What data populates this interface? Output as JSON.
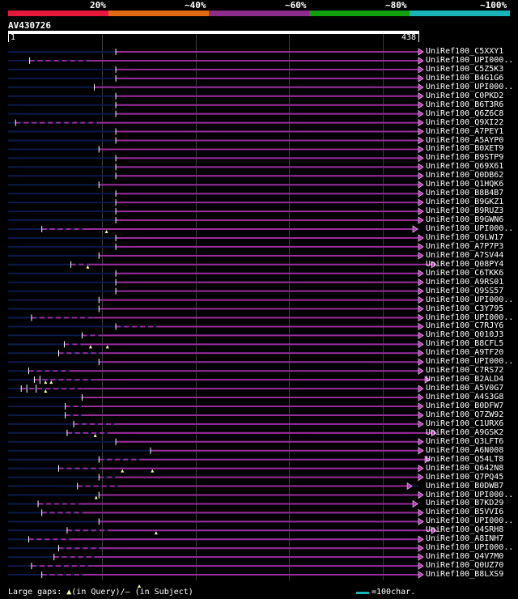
{
  "scale": {
    "labels": [
      "20%",
      "~40%",
      "~60%",
      "~80%",
      "~100%"
    ],
    "colors": [
      "#e8183c",
      "#e06a14",
      "#8c2c8c",
      "#10a010",
      "#18b4b8"
    ]
  },
  "query": {
    "id": "AV430726",
    "start": "1",
    "end": "438",
    "length": 438
  },
  "hits": [
    {
      "label": "UniRef100_C5XXY1",
      "qs": 115,
      "qe": 438,
      "ext": 0,
      "ss": 1,
      "dashes": 0
    },
    {
      "label": "UniRef100_UPI000..",
      "qs": 23,
      "qe": 438,
      "ext": 0,
      "ss": 1,
      "dashes": 3
    },
    {
      "label": "UniRef100_C5Z5K3",
      "qs": 115,
      "qe": 438,
      "ext": 0,
      "ss": 1,
      "dashes": 0
    },
    {
      "label": "UniRef100_B4G1G6",
      "qs": 115,
      "qe": 438,
      "ext": 0,
      "ss": 1,
      "dashes": 0
    },
    {
      "label": "UniRef100_UPI000..",
      "qs": 92,
      "qe": 438,
      "ext": 0,
      "ss": 1,
      "dashes": 0
    },
    {
      "label": "UniRef100_C0PKD2",
      "qs": 115,
      "qe": 438,
      "ext": 0,
      "ss": 1,
      "dashes": 0
    },
    {
      "label": "UniRef100_B6T3R6",
      "qs": 115,
      "qe": 438,
      "ext": 0,
      "ss": 1,
      "dashes": 0
    },
    {
      "label": "UniRef100_Q6Z6C8",
      "qs": 115,
      "qe": 438,
      "ext": 0,
      "ss": 1,
      "dashes": 0
    },
    {
      "label": "UniRef100_Q9XI22",
      "qs": 8,
      "qe": 438,
      "ext": 0,
      "ss": 1,
      "dashes": 4
    },
    {
      "label": "UniRef100_A7PEY1",
      "qs": 115,
      "qe": 438,
      "ext": 0,
      "ss": 1,
      "dashes": 0
    },
    {
      "label": "UniRef100_A5AYP0",
      "qs": 115,
      "qe": 438,
      "ext": 0,
      "ss": 1,
      "dashes": 0
    },
    {
      "label": "UniRef100_B0XET9",
      "qs": 97,
      "qe": 438,
      "ext": 0,
      "ss": 1,
      "dashes": 0
    },
    {
      "label": "UniRef100_B9STP9",
      "qs": 115,
      "qe": 438,
      "ext": 0,
      "ss": 1,
      "dashes": 0
    },
    {
      "label": "UniRef100_Q69X61",
      "qs": 115,
      "qe": 438,
      "ext": 0,
      "ss": 1,
      "dashes": 0
    },
    {
      "label": "UniRef100_Q0DB62",
      "qs": 115,
      "qe": 438,
      "ext": 0,
      "ss": 1,
      "dashes": 0
    },
    {
      "label": "UniRef100_Q1HQK6",
      "qs": 97,
      "qe": 438,
      "ext": 0,
      "ss": 1,
      "dashes": 0
    },
    {
      "label": "UniRef100_B8B4B7",
      "qs": 115,
      "qe": 438,
      "ext": 0,
      "ss": 1,
      "dashes": 0
    },
    {
      "label": "UniRef100_B9GKZ1",
      "qs": 115,
      "qe": 438,
      "ext": 0,
      "ss": 1,
      "dashes": 0
    },
    {
      "label": "UniRef100_B9RUZ3",
      "qs": 115,
      "qe": 438,
      "ext": 0,
      "ss": 1,
      "dashes": 0
    },
    {
      "label": "UniRef100_B9GWN6",
      "qs": 115,
      "qe": 438,
      "ext": 0,
      "ss": 1,
      "dashes": 0
    },
    {
      "label": "UniRef100_UPI000..",
      "qs": 36,
      "qe": 432,
      "ext": 0,
      "ss": 1,
      "dashes": 2
    },
    {
      "label": "UniRef100_Q9LW17",
      "qs": 115,
      "qe": 438,
      "ext": 0,
      "ss": 1,
      "dashes": 0
    },
    {
      "label": "UniRef100_A7P7P3",
      "qs": 115,
      "qe": 438,
      "ext": 0,
      "ss": 1,
      "dashes": 0
    },
    {
      "label": "UniRef100_A7SV44",
      "qs": 97,
      "qe": 438,
      "ext": 0,
      "ss": 1,
      "dashes": 0
    },
    {
      "label": "UniRef100_Q08PY4",
      "qs": 67,
      "qe": 452,
      "ext": 1,
      "ss": 1,
      "dashes": 1
    },
    {
      "label": "UniRef100_C6TKK6",
      "qs": 115,
      "qe": 438,
      "ext": 0,
      "ss": 1,
      "dashes": 0
    },
    {
      "label": "UniRef100_A9RS01",
      "qs": 115,
      "qe": 438,
      "ext": 0,
      "ss": 1,
      "dashes": 0
    },
    {
      "label": "UniRef100_Q9SS57",
      "qs": 115,
      "qe": 438,
      "ext": 0,
      "ss": 1,
      "dashes": 0
    },
    {
      "label": "UniRef100_UPI000..",
      "qs": 97,
      "qe": 438,
      "ext": 0,
      "ss": 1,
      "dashes": 0
    },
    {
      "label": "UniRef100_C3Y795",
      "qs": 97,
      "qe": 438,
      "ext": 0,
      "ss": 1,
      "dashes": 0
    },
    {
      "label": "UniRef100_UPI000..",
      "qs": 25,
      "qe": 438,
      "ext": 0,
      "ss": 1,
      "dashes": 3
    },
    {
      "label": "UniRef100_C7RJY6",
      "qs": 115,
      "qe": 438,
      "ext": 0,
      "ss": 1,
      "dashes": 2
    },
    {
      "label": "UniRef100_Q010J3",
      "qs": 79,
      "qe": 438,
      "ext": 0,
      "ss": 1,
      "dashes": 1
    },
    {
      "label": "UniRef100_B8CFL5",
      "qs": 60,
      "qe": 438,
      "ext": 0,
      "ss": 1,
      "dashes": 1
    },
    {
      "label": "UniRef100_A9TF20",
      "qs": 54,
      "qe": 438,
      "ext": 0,
      "ss": 1,
      "dashes": 2
    },
    {
      "label": "UniRef100_UPI000..",
      "qs": 97,
      "qe": 438,
      "ext": 0,
      "ss": 1,
      "dashes": 0
    },
    {
      "label": "UniRef100_C7RS72",
      "qs": 22,
      "qe": 438,
      "ext": 0,
      "ss": 1,
      "dashes": 2
    },
    {
      "label": "UniRef100_B2ALD4",
      "qs": 28,
      "qe": 445,
      "ext": 1,
      "ss": 1,
      "dashes": 3
    },
    {
      "label": "UniRef100_A5V0G7",
      "qs": 14,
      "qe": 438,
      "ext": 0,
      "ss": 1,
      "dashes": 3
    },
    {
      "label": "UniRef100_A4S3G8",
      "qs": 79,
      "qe": 438,
      "ext": 0,
      "ss": 1,
      "dashes": 0
    },
    {
      "label": "UniRef100_B0DFW7",
      "qs": 61,
      "qe": 438,
      "ext": 0,
      "ss": 1,
      "dashes": 1
    },
    {
      "label": "UniRef100_Q7ZW92",
      "qs": 61,
      "qe": 438,
      "ext": 0,
      "ss": 1,
      "dashes": 1
    },
    {
      "label": "UniRef100_C1URX6",
      "qs": 70,
      "qe": 438,
      "ext": 0,
      "ss": 1,
      "dashes": 2
    },
    {
      "label": "UniRef100_A9GSK2",
      "qs": 63,
      "qe": 452,
      "ext": 1,
      "ss": 1,
      "dashes": 2
    },
    {
      "label": "UniRef100_Q3LFT6",
      "qs": 115,
      "qe": 438,
      "ext": 0,
      "ss": 1,
      "dashes": 0
    },
    {
      "label": "UniRef100_A6N008",
      "qs": 152,
      "qe": 438,
      "ext": 0,
      "ss": 1,
      "dashes": 0
    },
    {
      "label": "UniRef100_Q54LT8",
      "qs": 97,
      "qe": 445,
      "ext": 1,
      "ss": 1,
      "dashes": 2
    },
    {
      "label": "UniRef100_Q642N8",
      "qs": 54,
      "qe": 438,
      "ext": 0,
      "ss": 1,
      "dashes": 2
    },
    {
      "label": "UniRef100_Q7PQ45",
      "qs": 97,
      "qe": 438,
      "ext": 0,
      "ss": 1,
      "dashes": 1
    },
    {
      "label": "UniRef100_B0DWB7",
      "qs": 74,
      "qe": 426,
      "ext": 0,
      "ss": 1,
      "dashes": 2
    },
    {
      "label": "UniRef100_UPI000..",
      "qs": 97,
      "qe": 438,
      "ext": 0,
      "ss": 1,
      "dashes": 0
    },
    {
      "label": "UniRef100_B7KD29",
      "qs": 32,
      "qe": 432,
      "ext": 0,
      "ss": 1,
      "dashes": 2
    },
    {
      "label": "UniRef100_B5VVI6",
      "qs": 36,
      "qe": 438,
      "ext": 0,
      "ss": 1,
      "dashes": 2
    },
    {
      "label": "UniRef100_UPI000..",
      "qs": 97,
      "qe": 438,
      "ext": 0,
      "ss": 1,
      "dashes": 0
    },
    {
      "label": "UniRef100_Q4SRH8",
      "qs": 63,
      "qe": 452,
      "ext": 1,
      "ss": 1,
      "dashes": 2
    },
    {
      "label": "UniRef100_A8INH7",
      "qs": 22,
      "qe": 438,
      "ext": 0,
      "ss": 1,
      "dashes": 2
    },
    {
      "label": "UniRef100_UPI000..",
      "qs": 54,
      "qe": 438,
      "ext": 0,
      "ss": 1,
      "dashes": 2
    },
    {
      "label": "UniRef100_Q4V7M0",
      "qs": 49,
      "qe": 438,
      "ext": 0,
      "ss": 1,
      "dashes": 2
    },
    {
      "label": "UniRef100_Q0UZ70",
      "qs": 25,
      "qe": 438,
      "ext": 0,
      "ss": 1,
      "dashes": 3
    },
    {
      "label": "UniRef100_B8LXS9",
      "qs": 36,
      "qe": 438,
      "ext": 0,
      "ss": 1,
      "dashes": 2
    }
  ],
  "query_gaps": [
    {
      "row": 20,
      "pos": 105
    },
    {
      "row": 24,
      "pos": 85
    },
    {
      "row": 33,
      "pos": 88
    },
    {
      "row": 33,
      "pos": 106
    },
    {
      "row": 37,
      "pos": 46
    },
    {
      "row": 37,
      "pos": 40
    },
    {
      "row": 38,
      "pos": 40
    },
    {
      "row": 43,
      "pos": 93
    },
    {
      "row": 47,
      "pos": 122
    },
    {
      "row": 47,
      "pos": 154
    },
    {
      "row": 50,
      "pos": 94
    },
    {
      "row": 54,
      "pos": 158
    },
    {
      "row": 60,
      "pos": 140
    }
  ],
  "subject_gaps": [
    {
      "row": 38,
      "pos": 20
    },
    {
      "row": 38,
      "pos": 30
    },
    {
      "row": 37,
      "pos": 34
    }
  ],
  "legend": {
    "left": "Large gaps: ",
    "query_symbol": "▲",
    "query_text": "(in Query)/",
    "subject_symbol": "–",
    "subject_text": " (in Subject)",
    "scale_text": "=100char."
  }
}
